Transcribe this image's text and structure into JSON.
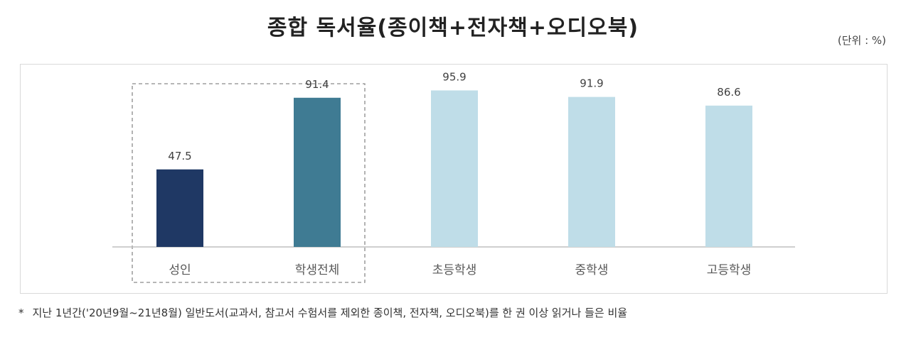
{
  "chart_data": {
    "type": "bar",
    "title": "종합 독서율(종이책+전자책+오디오북)",
    "unit_label": "(단위 : %)",
    "categories": [
      "성인",
      "학생전체",
      "초등학생",
      "중학생",
      "고등학생"
    ],
    "values": [
      47.5,
      91.4,
      95.9,
      91.9,
      86.6
    ],
    "value_labels": [
      "47.5",
      "91.4",
      "95.9",
      "91.9",
      "86.6"
    ],
    "bar_colors": [
      "#1f3864",
      "#3f7b93",
      "#bfdde8",
      "#bfdde8",
      "#bfdde8"
    ],
    "ylim": [
      0,
      100
    ],
    "grid": false,
    "legend": "none",
    "highlight_group": [
      0,
      1
    ]
  },
  "footnote": {
    "bullet": "*",
    "text": "지난 1년간('20년9월~21년8월) 일반도서(교과서, 참고서 수험서를 제외한 종이책, 전자책, 오디오북)를 한 권 이상 읽거나 들은 비율"
  }
}
